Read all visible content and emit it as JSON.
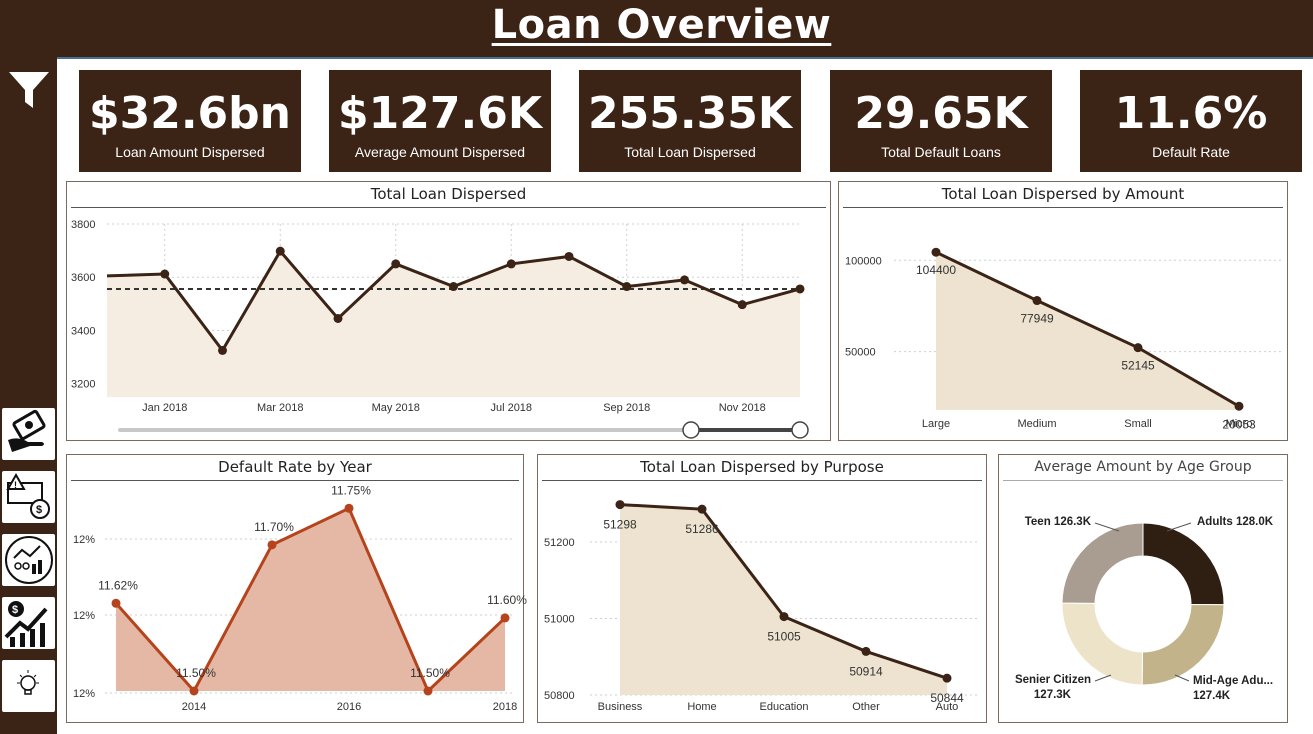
{
  "header": {
    "title": "Loan Overview"
  },
  "sidebar": {
    "filter_icon": "filter-icon",
    "nav": [
      {
        "name": "hand-money-icon"
      },
      {
        "name": "warning-money-icon"
      },
      {
        "name": "people-chart-icon"
      },
      {
        "name": "money-growth-icon"
      },
      {
        "name": "lightbulb-icon"
      }
    ]
  },
  "kpis": [
    {
      "value": "$32.6bn",
      "label": "Loan Amount Dispersed"
    },
    {
      "value": "$127.6K",
      "label": "Average Amount Dispersed"
    },
    {
      "value": "255.35K",
      "label": "Total Loan Dispersed"
    },
    {
      "value": "29.65K",
      "label": "Total Default Loans"
    },
    {
      "value": "11.6%",
      "label": "Default Rate"
    }
  ],
  "colors": {
    "dark": "#3b2316",
    "cream": "#ede3d0",
    "rust": "#b5431c",
    "rust_fill": "#e5b8a6"
  },
  "chart_data": [
    {
      "type": "line",
      "title": "Total Loan Dispersed",
      "y_ticks": [
        "3800",
        "3600",
        "3400",
        "3200"
      ],
      "ylim": [
        3150,
        3800
      ],
      "x_ticks": [
        "Jan 2018",
        "Mar 2018",
        "May 2018",
        "Jul 2018",
        "Sep 2018",
        "Nov 2018"
      ],
      "values": [
        3605,
        3612,
        3325,
        3698,
        3445,
        3650,
        3565,
        3650,
        3678,
        3565,
        3590,
        3497,
        3556
      ],
      "average": 3556,
      "grid": true,
      "range_slider": true
    },
    {
      "type": "area",
      "title": "Total Loan Dispersed by Amount",
      "categories": [
        "Large",
        "Medium",
        "Small",
        "Micro"
      ],
      "values": [
        104400,
        77949,
        52145,
        20053
      ],
      "y_ticks": [
        "100000",
        "50000"
      ],
      "ylim": [
        18000,
        110000
      ],
      "grid": true
    },
    {
      "type": "area",
      "title": "Default Rate by Year",
      "x_ticks": [
        "2014",
        "2016",
        "2018"
      ],
      "x": [
        2013,
        2014,
        2015,
        2016,
        2017,
        2018
      ],
      "values": [
        11.62,
        11.5,
        11.7,
        11.75,
        11.5,
        11.6
      ],
      "labels": [
        "11.62%",
        "11.50%",
        "11.70%",
        "11.75%",
        "11.50%",
        "11.60%"
      ],
      "y_ticks": [
        "12%",
        "12%",
        "12%"
      ],
      "ylim": [
        11.5,
        11.76
      ],
      "grid": true
    },
    {
      "type": "area",
      "title": "Total Loan Dispersed by Purpose",
      "categories": [
        "Business",
        "Home",
        "Education",
        "Other",
        "Auto"
      ],
      "values": [
        51298,
        51286,
        51005,
        50914,
        50844
      ],
      "labels": [
        "51298",
        "51286",
        "51005",
        "50914",
        "50844"
      ],
      "y_ticks": [
        "51200",
        "51000",
        "50800"
      ],
      "ylim": [
        50800,
        51310
      ],
      "grid": true
    },
    {
      "type": "pie",
      "title": "Average Amount by Age Group",
      "donut": true,
      "slices": [
        {
          "label": "Adults 128.0K",
          "value": 128.0,
          "color": "#2f1e12"
        },
        {
          "label": "Mid-Age Adu...",
          "sub": "127.4K",
          "value": 127.4,
          "color": "#c2b38a"
        },
        {
          "label": "Senier Citizen",
          "sub": "127.3K",
          "value": 127.3,
          "color": "#ede3c8"
        },
        {
          "label": "Teen 126.3K",
          "value": 126.3,
          "color": "#a99d91"
        }
      ]
    }
  ]
}
